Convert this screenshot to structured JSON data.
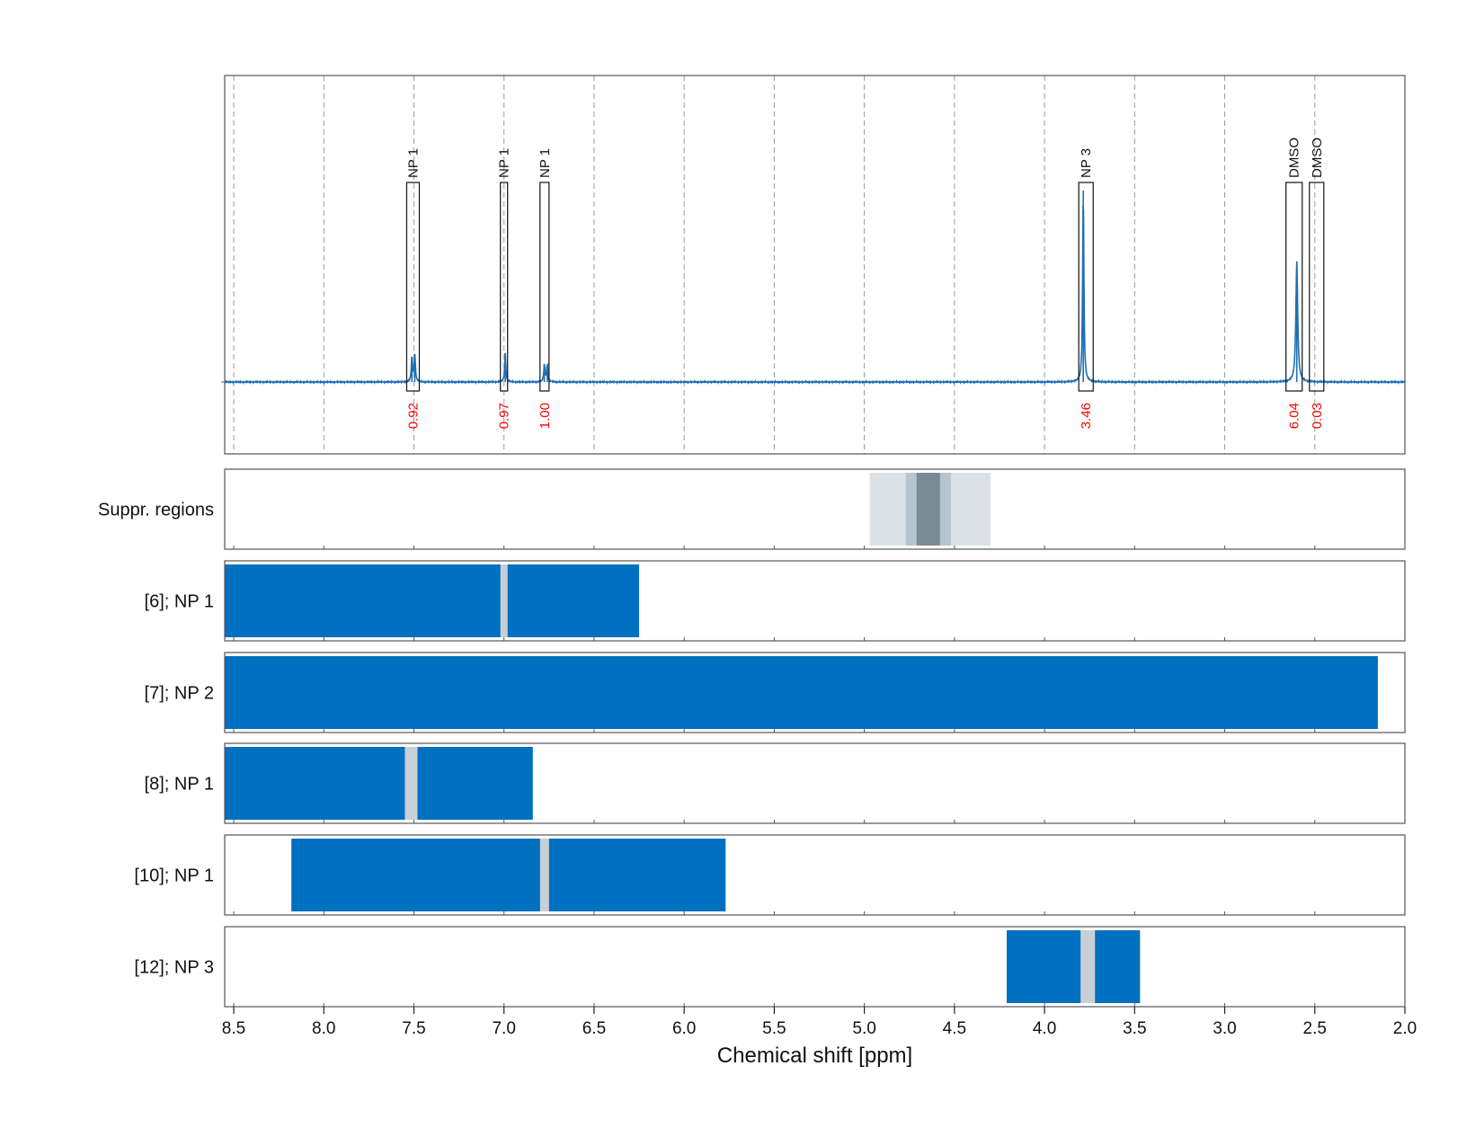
{
  "chart_data": {
    "type": "nmr_spectrum_with_tracks",
    "xlabel": "Chemical shift [ppm]",
    "x_reversed": true,
    "xlim": [
      8.55,
      2.0
    ],
    "xticks": [
      8.5,
      8.0,
      7.5,
      7.0,
      6.5,
      6.0,
      5.5,
      5.0,
      4.5,
      4.0,
      3.5,
      3.0,
      2.5,
      2.0
    ],
    "xtick_labels": [
      "8.5",
      "8.0",
      "7.5",
      "7.0",
      "6.5",
      "6.0",
      "5.5",
      "5.0",
      "4.5",
      "4.0",
      "3.5",
      "3.0",
      "2.5",
      "2.0"
    ],
    "grid": true,
    "spectrum": {
      "color": "#1f6fb5",
      "baseline": 0,
      "ylim": [
        -0.4,
        1.55
      ],
      "peaks": [
        {
          "x": 7.511,
          "height": 0.13,
          "width": 0.004
        },
        {
          "x": 7.495,
          "height": 0.14,
          "width": 0.004
        },
        {
          "x": 6.993,
          "height": 0.15,
          "width": 0.004
        },
        {
          "x": 6.776,
          "height": 0.09,
          "width": 0.004
        },
        {
          "x": 6.76,
          "height": 0.09,
          "width": 0.004
        },
        {
          "x": 3.785,
          "height": 1.0,
          "width": 0.004
        },
        {
          "x": 2.6,
          "height": 0.63,
          "width": 0.006
        }
      ]
    },
    "integrations": [
      {
        "label": "NP 1",
        "x_from": 7.54,
        "x_to": 7.47,
        "value": "0.92"
      },
      {
        "label": "NP 1",
        "x_from": 7.02,
        "x_to": 6.98,
        "value": "0.97"
      },
      {
        "label": "NP 1",
        "x_from": 6.8,
        "x_to": 6.75,
        "value": "1.00"
      },
      {
        "label": "NP 3",
        "x_from": 3.81,
        "x_to": 3.73,
        "value": "3.46"
      },
      {
        "label": "DMSO",
        "x_from": 2.66,
        "x_to": 2.57,
        "value": "6.04"
      },
      {
        "label": "DMSO",
        "x_from": 2.53,
        "x_to": 2.45,
        "value": "0.03"
      }
    ],
    "tracks": [
      {
        "label": "Suppr. regions",
        "kind": "suppression",
        "regions": [
          {
            "x_from": 4.97,
            "x_to": 4.3,
            "shade": "light"
          },
          {
            "x_from": 4.77,
            "x_to": 4.52,
            "shade": "medium"
          },
          {
            "x_from": 4.71,
            "x_to": 4.58,
            "shade": "dark"
          }
        ]
      },
      {
        "label": "[6]; NP 1",
        "bars": [
          {
            "x_from": 8.55,
            "x_to": 6.25
          }
        ],
        "markers": [
          {
            "x_from": 7.02,
            "x_to": 6.98
          }
        ]
      },
      {
        "label": "[7]; NP 2",
        "bars": [
          {
            "x_from": 8.55,
            "x_to": 2.15
          }
        ],
        "markers": []
      },
      {
        "label": "[8]; NP 1",
        "bars": [
          {
            "x_from": 8.55,
            "x_to": 6.84
          }
        ],
        "markers": [
          {
            "x_from": 7.55,
            "x_to": 7.48
          }
        ]
      },
      {
        "label": "[10]; NP 1",
        "bars": [
          {
            "x_from": 8.18,
            "x_to": 5.77
          }
        ],
        "markers": [
          {
            "x_from": 6.8,
            "x_to": 6.75
          }
        ]
      },
      {
        "label": "[12]; NP 3",
        "bars": [
          {
            "x_from": 4.21,
            "x_to": 3.47
          }
        ],
        "markers": [
          {
            "x_from": 3.8,
            "x_to": 3.72
          }
        ]
      }
    ],
    "colors": {
      "spectrum": "#1f6fb5",
      "bar": "#0070c0",
      "marker": "#c8d0d6",
      "integral_value": "#ff0000",
      "grid": "#9a9a9a",
      "frame": "#555555",
      "suppr_light": "#dae2e8",
      "suppr_medium": "#b8c4cd",
      "suppr_dark": "#7b8b96"
    }
  }
}
